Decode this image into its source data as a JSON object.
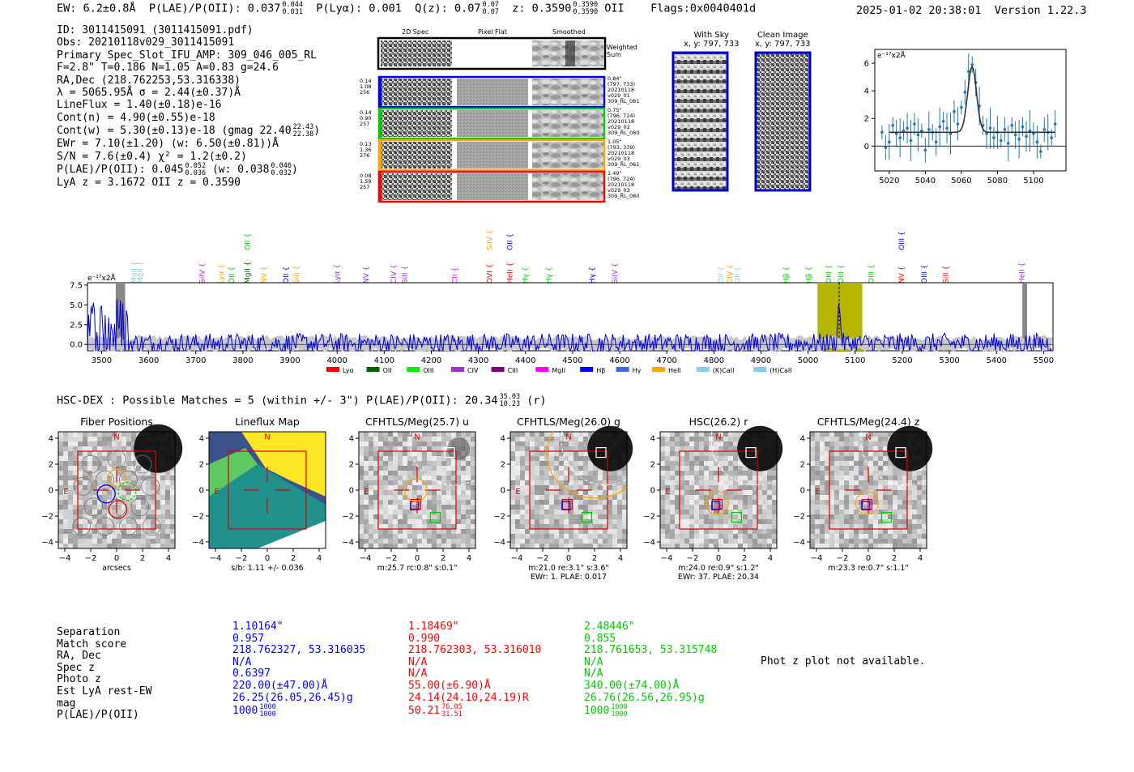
{
  "header": {
    "ew": "EW: 6.2±0.8Å",
    "plae_label": "P(LAE)/P(OII): 0.037",
    "plae_hi": "0.044",
    "plae_lo": "0.031",
    "plya": "P(Lyα): 0.001",
    "qz": "Q(z): 0.07",
    "qz_hi": "0.07",
    "qz_lo": "0.07",
    "z": "z: 0.3590",
    "z_hi": "0.3590",
    "z_lo": "0.3590",
    "z_line": "OII",
    "flags": "Flags:0x0040401d",
    "timestamp": "2025-01-02 20:38:01",
    "version": "Version 1.22.3"
  },
  "info": {
    "id": "ID: 3011415091 (3011415091.pdf)",
    "obs": "Obs: 20210118v029_3011415091",
    "primary": "Primary Spec_Slot_IFU_AMP: 309_046_005_RL",
    "fparams": "F=2.8\"  T=0.186  N=1.05  A=0.83  g=24.6",
    "radec": "RA,Dec (218.762253,53.316338)",
    "lambda": "λ = 5065.95Å  σ = 2.44(±0.37)Å",
    "lineflux": "LineFlux = 1.40(±0.18)e-16",
    "contn": "Cont(n) = 4.90(±0.55)e-18",
    "contw": "Cont(w) = 5.30(±0.13)e-18 (gmag 22.40",
    "contw_hi": "22.43",
    "contw_lo": "22.38",
    "contw_end": ")",
    "ewr": "EWr = 7.10(±1.20) (w: 6.50(±0.81))Å",
    "sn": "S/N = 7.6(±0.4)  χ² = 1.2(±0.2)",
    "plae": "P(LAE)/P(OII): 0.045",
    "plae_hi": "0.052",
    "plae_lo": "0.036",
    "plae_w": "(w: 0.038",
    "plae_w_hi": "0.046",
    "plae_w_lo": "0.032",
    "plae_w_end": ")",
    "lyaz": "LyA z = 3.1672  OII z = 0.3590"
  },
  "cutouts": {
    "col_titles": [
      "2D Spec",
      "Pixel Flat",
      "Smoothed"
    ],
    "weighted_sum": "Weighted Sum",
    "rows": [
      {
        "vals": [
          "0.14",
          "1.08",
          "256"
        ],
        "meta": [
          "0.84\"",
          "(797, 733)",
          "20210118",
          "v029_01",
          "309_RL_081"
        ],
        "color": "#0000ff"
      },
      {
        "vals": [
          "0.14",
          "0.90",
          "257"
        ],
        "meta": [
          "0.75\"",
          "(796, 724)",
          "20210118",
          "v029_02",
          "309_RL_080"
        ],
        "color": "#00cc00"
      },
      {
        "vals": [
          "0.13",
          "1.36",
          "276"
        ],
        "meta": [
          "1.05\"",
          "(793, 339)",
          "20210118",
          "v029_03",
          "309_RL_061"
        ],
        "color": "#ffa500"
      },
      {
        "vals": [
          "0.08",
          "1.59",
          "257"
        ],
        "meta": [
          "1.49\"",
          "(796, 724)",
          "20210118",
          "v029_03",
          "309_RL_080"
        ],
        "color": "#ff0000"
      }
    ]
  },
  "sky": {
    "with_sky_title": "With Sky",
    "with_sky_coord": "x, y: 797, 733",
    "clean_title": "Clean Image",
    "clean_coord": "x, y: 797, 733"
  },
  "line_labels": [
    {
      "name": "MgII",
      "color": "#87ceeb",
      "wl": 3567
    },
    {
      "name": "MgII",
      "color": "#87ceeb",
      "wl": 3580
    },
    {
      "name": "SiIV",
      "color": "#9932cc",
      "wl": 3712
    },
    {
      "name": "Lyα",
      "color": "#ffa500",
      "wl": 3752
    },
    {
      "name": "OII",
      "color": "#00cc00",
      "wl": 3774
    },
    {
      "name": "MgII",
      "color": "#006400",
      "wl": 3808
    },
    {
      "name": "OII",
      "color": "#00cc00",
      "wl": 3808
    },
    {
      "name": "NV",
      "color": "#ffa500",
      "wl": 3843
    },
    {
      "name": "OII",
      "color": "#0000ff",
      "wl": 3890
    },
    {
      "name": "SiII",
      "color": "#ffa500",
      "wl": 3912
    },
    {
      "name": "Lyα",
      "color": "#9932cc",
      "wl": 3998
    },
    {
      "name": "NV",
      "color": "#9932cc",
      "wl": 4060
    },
    {
      "name": "CIV",
      "color": "#9932cc",
      "wl": 4118
    },
    {
      "name": "SiII",
      "color": "#9932cc",
      "wl": 4142
    },
    {
      "name": "CII",
      "color": "#ff00ff",
      "wl": 4248
    },
    {
      "name": "OVI",
      "color": "#ff0000",
      "wl": 4322
    },
    {
      "name": "SiIV",
      "color": "#ffa500",
      "wl": 4322
    },
    {
      "name": "HeII",
      "color": "#ff0000",
      "wl": 4365
    },
    {
      "name": "OII",
      "color": "#0000ff",
      "wl": 4365
    },
    {
      "name": "Hγ",
      "color": "#00cc00",
      "wl": 4398
    },
    {
      "name": "Hγ",
      "color": "#00cc00",
      "wl": 4448
    },
    {
      "name": "Hγ",
      "color": "#0000ff",
      "wl": 4540
    },
    {
      "name": "SiIV",
      "color": "#9932cc",
      "wl": 4588
    },
    {
      "name": "OII",
      "color": "#87ceeb",
      "wl": 4813
    },
    {
      "name": "CIV",
      "color": "#ffa500",
      "wl": 4832
    },
    {
      "name": "OII",
      "color": "#87ceeb",
      "wl": 4848
    },
    {
      "name": "Hβ",
      "color": "#00cc00",
      "wl": 4952
    },
    {
      "name": "Hβ",
      "color": "#00cc00",
      "wl": 5000
    },
    {
      "name": "OIII",
      "color": "#00cc00",
      "wl": 5042
    },
    {
      "name": "OIII",
      "color": "#00cc00",
      "wl": 5068
    },
    {
      "name": "OIII",
      "color": "#00cc00",
      "wl": 5132
    },
    {
      "name": "OIII",
      "color": "#0000ff",
      "wl": 5197
    },
    {
      "name": "NV",
      "color": "#ff0000",
      "wl": 5197
    },
    {
      "name": "OIII",
      "color": "#0000ff",
      "wl": 5245
    },
    {
      "name": "SiII",
      "color": "#ff0000",
      "wl": 5290
    },
    {
      "name": "HeII",
      "color": "#9932cc",
      "wl": 5452
    }
  ],
  "legend": [
    {
      "name": "Lyα",
      "color": "#ff0000"
    },
    {
      "name": "OII",
      "color": "#006400"
    },
    {
      "name": "OIII",
      "color": "#00ee00"
    },
    {
      "name": "CIV",
      "color": "#9932cc"
    },
    {
      "name": "CIII",
      "color": "#800080"
    },
    {
      "name": "MgII",
      "color": "#ff00ff"
    },
    {
      "name": "Hβ",
      "color": "#0000ff"
    },
    {
      "name": "Hγ",
      "color": "#4169e1"
    },
    {
      "name": "HeII",
      "color": "#ffa500"
    },
    {
      "name": "(K)CaII",
      "color": "#87ceeb"
    },
    {
      "name": "(H)CaII",
      "color": "#87ceeb"
    }
  ],
  "hsc": {
    "title": "HSC-DEX : Possible Matches = 5 (within +/- 3\")  P(LAE)/P(OII): 20.34",
    "hi": "35.03",
    "lo": "10.23",
    "end": "(r)"
  },
  "panels": [
    {
      "title": "Fiber Positions",
      "caption": [
        "arcsecs"
      ]
    },
    {
      "title": "Lineflux Map",
      "caption": [
        "s/b: 1.11 +/- 0.036"
      ]
    },
    {
      "title": "CFHTLS/Meg(25.7) u",
      "caption": [
        "m:25.7 rc:0.8\"  s:0.1\""
      ]
    },
    {
      "title": "CFHTLS/Meg(26.0) g",
      "caption": [
        "m:21.0  re:3.1\"  s:3.6\"",
        "EWr: 1. PLAE: 0.017"
      ]
    },
    {
      "title": "HSC(26.2) r",
      "caption": [
        "m:24.0  re:0.9\"  s:1.2\"",
        "EWr: 37. PLAE: 20.34"
      ]
    },
    {
      "title": "CFHTLS/Meg(24.4) z",
      "caption": [
        "m:23.3  re:0.7\"  s:1.1\""
      ]
    }
  ],
  "table": {
    "labels": [
      "Separation",
      "Match score",
      "RA, Dec",
      "Spec z",
      "Photo z",
      "Est LyA rest-EW",
      "mag",
      "P(LAE)/P(OII)"
    ],
    "columns": [
      {
        "color": "#0000ff",
        "values": [
          "1.10164\"",
          "0.957",
          "218.762327, 53.316035",
          "N/A",
          "0.6397",
          "220.00(±47.00)Å",
          "26.25(26.05,26.45)g",
          "1000"
        ],
        "plae_hi": "1000",
        "plae_lo": "1000"
      },
      {
        "color": "#ff0000",
        "values": [
          "1.18469\"",
          "0.990",
          "218.762303, 53.316010",
          "N/A",
          "N/A",
          "55.00(±6.90)Å",
          "24.14(24.10,24.19)R",
          "50.21"
        ],
        "plae_hi": "76.05",
        "plae_lo": "31.51"
      },
      {
        "color": "#00cc00",
        "values": [
          "2.48446\"",
          "0.855",
          "218.761653, 53.315748",
          "N/A",
          "N/A",
          "340.00(±74.00)Å",
          "26.76(26.56,26.95)g",
          "1000"
        ],
        "plae_hi": "1000",
        "plae_lo": "1000"
      }
    ],
    "photz_note": "Phot z plot not available."
  },
  "chart_data": [
    {
      "type": "line",
      "name": "full-spectrum",
      "ylabel": "e⁻¹⁷x2Å",
      "xlim": [
        3470,
        5520
      ],
      "ylim": [
        -0.8,
        7.8
      ],
      "xticks": [
        3500,
        3600,
        3700,
        3800,
        3900,
        4000,
        4100,
        4200,
        4300,
        4400,
        4500,
        4600,
        4700,
        4800,
        4900,
        5000,
        5100,
        5200,
        5300,
        5400,
        5500
      ],
      "yticks": [
        0.0,
        2.5,
        5.0,
        7.5
      ],
      "highlight": [
        5020,
        5115
      ],
      "peak_wl": 5066,
      "masked": [
        [
          3530,
          3550
        ],
        [
          5455,
          5465
        ]
      ]
    },
    {
      "type": "scatter",
      "name": "line-fit",
      "ylabel": "e⁻¹⁷x2Å",
      "xlim": [
        5012,
        5118
      ],
      "ylim": [
        -1.8,
        7.0
      ],
      "xticks": [
        5020,
        5040,
        5060,
        5080,
        5100
      ],
      "yticks": [
        0,
        2,
        4,
        6
      ],
      "x": [
        5016,
        5018,
        5020,
        5022,
        5024,
        5026,
        5028,
        5030,
        5032,
        5034,
        5036,
        5038,
        5040,
        5042,
        5044,
        5046,
        5048,
        5050,
        5052,
        5054,
        5056,
        5058,
        5060,
        5062,
        5064,
        5066,
        5068,
        5070,
        5072,
        5074,
        5076,
        5078,
        5080,
        5082,
        5084,
        5086,
        5088,
        5090,
        5092,
        5094,
        5096,
        5098,
        5100,
        5102,
        5104,
        5106,
        5108,
        5110,
        5112
      ],
      "y": [
        1.0,
        -0.1,
        0.3,
        1.5,
        0.9,
        0.6,
        1.1,
        1.3,
        0.4,
        1.6,
        0.8,
        1.1,
        -0.3,
        1.2,
        1.0,
        0.3,
        1.4,
        1.8,
        1.3,
        0.9,
        2.5,
        1.6,
        2.8,
        3.9,
        5.4,
        5.9,
        4.6,
        2.9,
        1.5,
        0.9,
        1.3,
        0.6,
        1.0,
        0.4,
        1.2,
        0.2,
        1.5,
        0.8,
        0.5,
        1.4,
        0.7,
        1.1,
        0.9,
        0.3,
        -0.4,
        1.2,
        1.0,
        0.6,
        1.6
      ],
      "fit": {
        "continuum": 1.0,
        "amplitude": 4.75,
        "center": 5065.95,
        "sigma": 2.44
      }
    }
  ]
}
